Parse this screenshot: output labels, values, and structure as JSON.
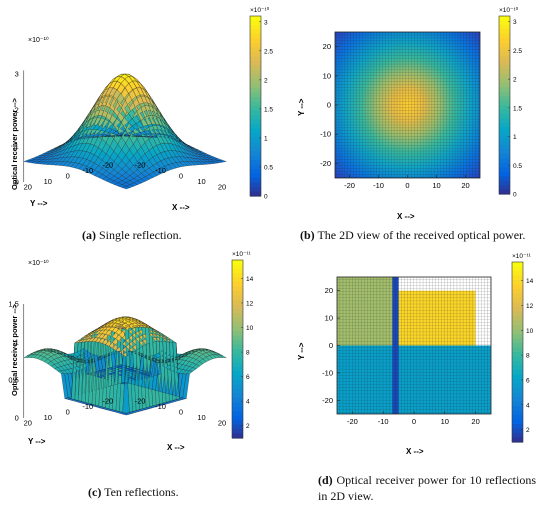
{
  "colors": {
    "parula": [
      "#352a87",
      "#0363e1",
      "#1485d4",
      "#06a7c6",
      "#38b99e",
      "#92bf73",
      "#d9ba56",
      "#fcce2e",
      "#f9fb0e"
    ],
    "mesh_line": "#1a1a1a"
  },
  "captions": {
    "a": {
      "tag": "(a)",
      "text": " Single reflection."
    },
    "b": {
      "tag": "(b)",
      "text": " The 2D view of the received optical power."
    },
    "c": {
      "tag": "(c)",
      "text": " Ten reflections."
    },
    "d": {
      "tag": "(d)",
      "text": " Optical receiver power for 10 reflections in 2D view."
    }
  },
  "chart_data": [
    {
      "id": "a",
      "type": "surface",
      "title": "",
      "zlabel": "Optical receiver power -->",
      "xlabel": "X -->",
      "ylabel": "Y -->",
      "z_exponent": "×10⁻¹⁰",
      "xticks": [
        "-20",
        "-10",
        "0",
        "10",
        "20"
      ],
      "yticks": [
        "20",
        "10",
        "0",
        "-10",
        "-20"
      ],
      "zticks": [
        "0",
        "1",
        "2",
        "3"
      ],
      "zlim": [
        0,
        3.1
      ],
      "colorbar": {
        "exponent": "×10⁻¹⁰",
        "ticks": [
          "0",
          "0.5",
          "1",
          "1.5",
          "2",
          "2.5",
          "3"
        ],
        "range": [
          0,
          3.1
        ]
      },
      "surface": "single peak centered at origin, max ≈ 3.0e-10, edges ≈ 0.6e-10"
    },
    {
      "id": "b",
      "type": "heatmap",
      "xlabel": "X -->",
      "ylabel": "Y -->",
      "xticks": [
        "-20",
        "-10",
        "0",
        "10",
        "20"
      ],
      "yticks": [
        "20",
        "10",
        "0",
        "-10",
        "-20"
      ],
      "xlim": [
        -25,
        25
      ],
      "ylim": [
        -25,
        25
      ],
      "colorbar": {
        "exponent": "×10⁻¹⁰",
        "ticks": [
          "0",
          "0.5",
          "1",
          "1.5",
          "2",
          "2.5",
          "3"
        ],
        "range": [
          0,
          3.1
        ]
      }
    },
    {
      "id": "c",
      "type": "surface",
      "zlabel": "Optical receiver power -->",
      "xlabel": "X -->",
      "ylabel": "Y -->",
      "z_exponent": "×10⁻¹⁰",
      "xticks": [
        "-20",
        "-10",
        "0",
        "10",
        "20"
      ],
      "yticks": [
        "20",
        "10",
        "0",
        "-10",
        "-20"
      ],
      "zticks": [
        "0",
        "0.5",
        "1",
        "1.5"
      ],
      "zlim": [
        0,
        1.5
      ],
      "colorbar": {
        "exponent": "×10⁻¹¹",
        "ticks": [
          "2",
          "4",
          "6",
          "8",
          "10",
          "12",
          "14"
        ],
        "range": [
          1,
          15.5
        ]
      }
    },
    {
      "id": "d",
      "type": "heatmap",
      "xlabel": "X -->",
      "ylabel": "Y -->",
      "xticks": [
        "-20",
        "-10",
        "0",
        "10",
        "20"
      ],
      "yticks": [
        "20",
        "10",
        "0",
        "-10",
        "-20"
      ],
      "xlim": [
        -25,
        25
      ],
      "ylim": [
        -25,
        25
      ],
      "regions": [
        {
          "name": "upper-right block",
          "x": [
            -5,
            20
          ],
          "y": [
            0,
            20
          ],
          "value": 14
        },
        {
          "name": "upper-left",
          "x": [
            -25,
            -5
          ],
          "y": [
            0,
            25
          ],
          "value": 10.5
        },
        {
          "name": "lower half",
          "x": [
            -25,
            25
          ],
          "y": [
            -25,
            0
          ],
          "value": 6
        },
        {
          "name": "vertical stripe",
          "x": [
            -7,
            -5
          ],
          "y": [
            -25,
            25
          ],
          "value": 2
        }
      ],
      "colorbar": {
        "exponent": "×10⁻¹¹",
        "ticks": [
          "2",
          "4",
          "6",
          "8",
          "10",
          "12",
          "14"
        ],
        "range": [
          1,
          15.5
        ]
      }
    }
  ]
}
